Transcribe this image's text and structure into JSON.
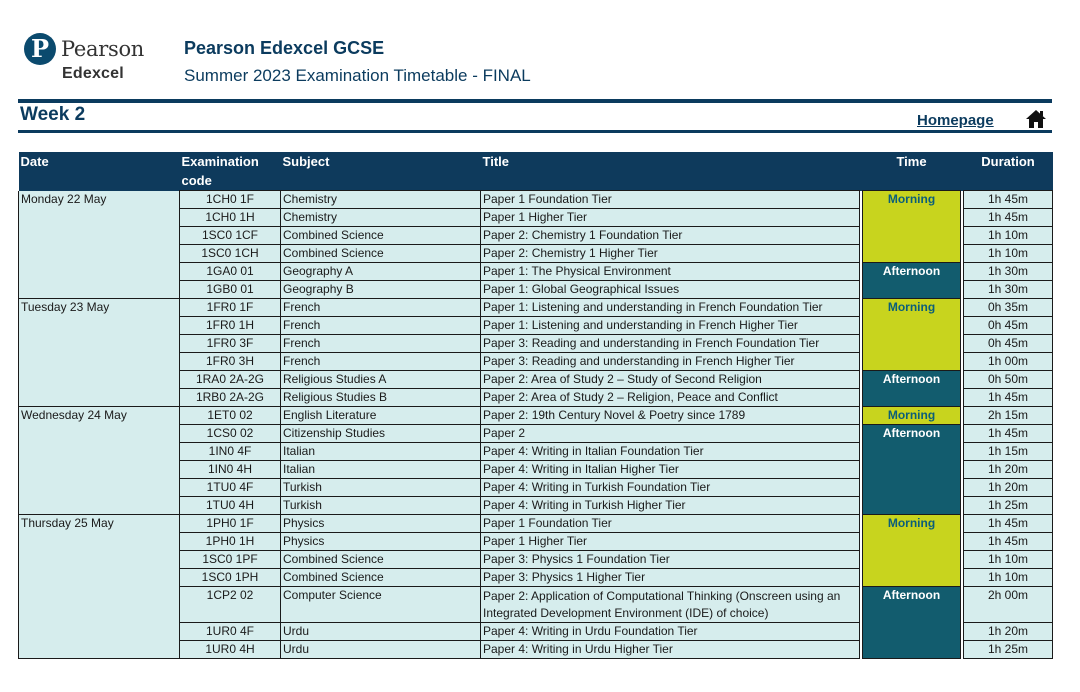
{
  "header": {
    "logo_pearson": "Pearson",
    "logo_edexcel": "Edexcel",
    "logo_letter": "P",
    "title": "Pearson Edexcel GCSE",
    "subtitle": "Summer 2023 Examination Timetable - FINAL",
    "week": "Week 2",
    "homepage_link": "Homepage",
    "home_icon": "home-icon"
  },
  "table": {
    "columns": {
      "date": "Date",
      "code": "Examination code",
      "subject": "Subject",
      "title": "Title",
      "time": "Time",
      "duration": "Duration"
    },
    "days": [
      {
        "date": "Monday 22 May",
        "rows": [
          {
            "code": "1CH0 1F",
            "subject": "Chemistry",
            "title": "Paper 1 Foundation Tier",
            "duration": "1h 45m"
          },
          {
            "code": "1CH0 1H",
            "subject": "Chemistry",
            "title": "Paper 1 Higher Tier",
            "duration": "1h 45m"
          },
          {
            "code": "1SC0 1CF",
            "subject": "Combined Science",
            "title": "Paper 2: Chemistry 1 Foundation Tier",
            "duration": "1h 10m"
          },
          {
            "code": "1SC0 1CH",
            "subject": "Combined Science",
            "title": "Paper 2: Chemistry 1 Higher Tier",
            "duration": "1h 10m"
          },
          {
            "code": "1GA0 01",
            "subject": "Geography A",
            "title": "Paper 1: The Physical Environment",
            "duration": "1h 30m"
          },
          {
            "code": "1GB0 01",
            "subject": "Geography B",
            "title": "Paper 1: Global Geographical Issues",
            "duration": "1h 30m"
          }
        ],
        "sessions": [
          {
            "label": "Morning",
            "type": "morning"
          },
          {
            "label": "Afternoon",
            "type": "afternoon"
          }
        ]
      },
      {
        "date": "Tuesday 23 May",
        "rows": [
          {
            "code": "1FR0 1F",
            "subject": "French",
            "title": "Paper 1: Listening and understanding in French Foundation Tier",
            "duration": "0h 35m"
          },
          {
            "code": "1FR0 1H",
            "subject": "French",
            "title": "Paper 1: Listening and understanding in French Higher Tier",
            "duration": "0h 45m"
          },
          {
            "code": "1FR0 3F",
            "subject": "French",
            "title": "Paper 3: Reading and understanding in French Foundation Tier",
            "duration": "0h 45m"
          },
          {
            "code": "1FR0 3H",
            "subject": "French",
            "title": "Paper 3: Reading and understanding in French Higher Tier",
            "duration": "1h 00m"
          },
          {
            "code": "1RA0 2A-2G",
            "subject": "Religious Studies A",
            "title": "Paper 2: Area of Study 2 – Study of Second Religion",
            "duration": "0h 50m"
          },
          {
            "code": "1RB0 2A-2G",
            "subject": "Religious Studies B",
            "title": "Paper 2: Area of Study 2 – Religion, Peace and Conflict",
            "duration": "1h 45m"
          }
        ],
        "sessions": [
          {
            "label": "Morning",
            "type": "morning"
          },
          {
            "label": "Afternoon",
            "type": "afternoon"
          }
        ]
      },
      {
        "date": "Wednesday 24 May",
        "rows": [
          {
            "code": "1ET0 02",
            "subject": "English Literature",
            "title": "Paper 2: 19th Century Novel & Poetry since 1789",
            "duration": "2h 15m"
          },
          {
            "code": "1CS0 02",
            "subject": "Citizenship Studies",
            "title": "Paper 2",
            "duration": "1h 45m"
          },
          {
            "code": "1IN0 4F",
            "subject": "Italian",
            "title": "Paper 4: Writing in Italian Foundation Tier",
            "duration": "1h 15m"
          },
          {
            "code": "1IN0 4H",
            "subject": "Italian",
            "title": "Paper 4: Writing in Italian Higher Tier",
            "duration": "1h 20m"
          },
          {
            "code": "1TU0 4F",
            "subject": "Turkish",
            "title": "Paper 4: Writing in Turkish Foundation Tier",
            "duration": "1h 20m"
          },
          {
            "code": "1TU0 4H",
            "subject": "Turkish",
            "title": "Paper 4: Writing in Turkish Higher Tier",
            "duration": "1h 25m"
          }
        ],
        "sessions": [
          {
            "label": "Morning",
            "type": "morning"
          },
          {
            "label": "Afternoon",
            "type": "afternoon"
          }
        ]
      },
      {
        "date": "Thursday 25 May",
        "rows": [
          {
            "code": "1PH0 1F",
            "subject": "Physics",
            "title": "Paper 1 Foundation Tier",
            "duration": "1h 45m"
          },
          {
            "code": "1PH0 1H",
            "subject": "Physics",
            "title": "Paper 1 Higher Tier",
            "duration": "1h 45m"
          },
          {
            "code": "1SC0 1PF",
            "subject": "Combined Science",
            "title": "Paper 3: Physics 1 Foundation Tier",
            "duration": "1h 10m"
          },
          {
            "code": "1SC0 1PH",
            "subject": "Combined Science",
            "title": "Paper 3: Physics 1 Higher Tier",
            "duration": "1h 10m"
          },
          {
            "code": "1CP2 02",
            "subject": "Computer Science",
            "title": "Paper 2: Application of Computational Thinking (Onscreen using an Integrated Development Environment (IDE) of choice)",
            "duration": "2h 00m"
          },
          {
            "code": "1UR0 4F",
            "subject": "Urdu",
            "title": "Paper 4: Writing in Urdu Foundation Tier",
            "duration": "1h 20m"
          },
          {
            "code": "1UR0 4H",
            "subject": "Urdu",
            "title": "Paper 4: Writing in Urdu Higher Tier",
            "duration": "1h 25m"
          }
        ],
        "sessions": [
          {
            "label": "Morning",
            "type": "morning"
          },
          {
            "label": "Afternoon",
            "type": "afternoon"
          }
        ]
      }
    ]
  },
  "colors": {
    "navy": "#0e3a5c",
    "row_bg": "#d6eded",
    "morning": "#c8d41e",
    "afternoon": "#125c6e"
  }
}
